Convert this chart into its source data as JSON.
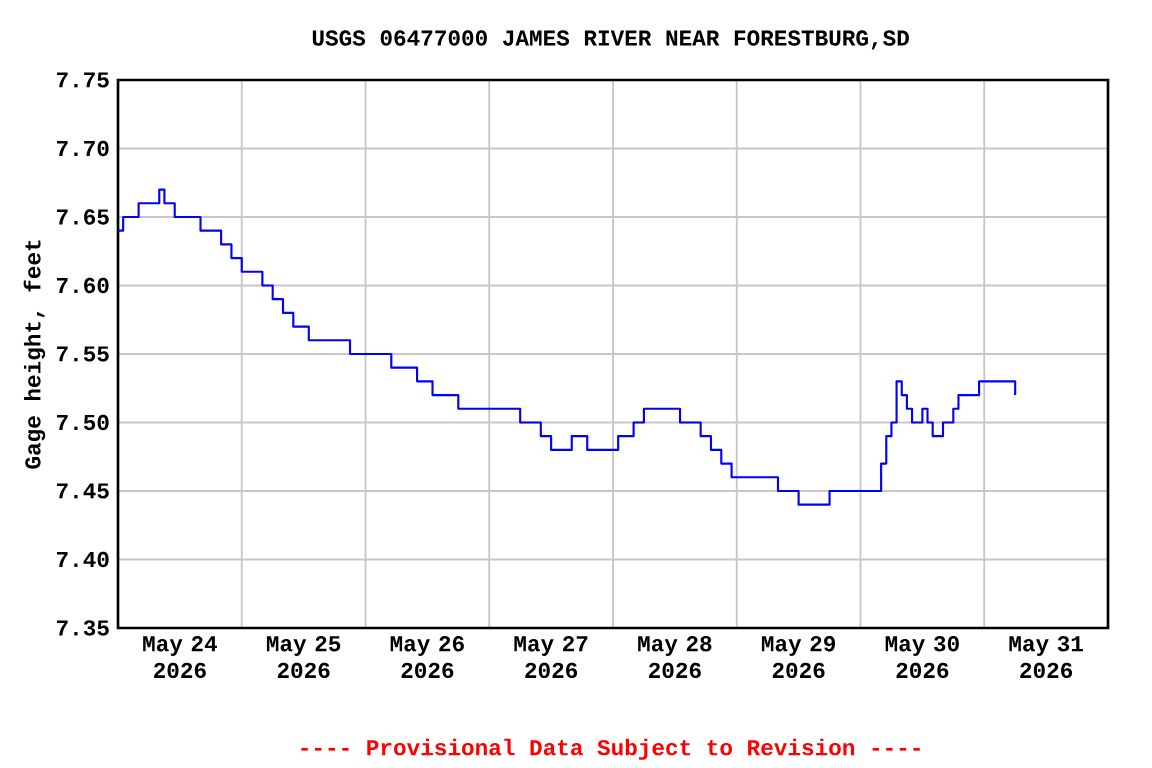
{
  "chart_data": {
    "type": "step",
    "title": "USGS 06477000 JAMES RIVER NEAR FORESTBURG,SD",
    "ylabel": "Gage height, feet",
    "annotations": [
      "---- Provisional Data Subject to Revision ----"
    ],
    "x": [
      "2026-05-24T00:00",
      "2026-05-24T01:00",
      "2026-05-24T04:00",
      "2026-05-24T08:00",
      "2026-05-24T09:00",
      "2026-05-24T11:00",
      "2026-05-24T16:00",
      "2026-05-24T20:00",
      "2026-05-24T22:00",
      "2026-05-25T00:00",
      "2026-05-25T04:00",
      "2026-05-25T06:00",
      "2026-05-25T08:00",
      "2026-05-25T10:00",
      "2026-05-25T13:00",
      "2026-05-25T21:00",
      "2026-05-26T05:00",
      "2026-05-26T10:00",
      "2026-05-26T13:00",
      "2026-05-26T18:00",
      "2026-05-27T05:00",
      "2026-05-27T06:00",
      "2026-05-27T10:00",
      "2026-05-27T12:00",
      "2026-05-27T16:00",
      "2026-05-27T19:00",
      "2026-05-28T01:00",
      "2026-05-28T04:00",
      "2026-05-28T06:00",
      "2026-05-28T13:00",
      "2026-05-28T17:00",
      "2026-05-28T19:00",
      "2026-05-28T21:00",
      "2026-05-28T23:00",
      "2026-05-29T08:00",
      "2026-05-29T12:00",
      "2026-05-29T18:00",
      "2026-05-30T04:00",
      "2026-05-30T05:00",
      "2026-05-30T06:00",
      "2026-05-30T07:00",
      "2026-05-30T08:00",
      "2026-05-30T09:00",
      "2026-05-30T10:00",
      "2026-05-30T12:00",
      "2026-05-30T13:00",
      "2026-05-30T14:00",
      "2026-05-30T16:00",
      "2026-05-30T18:00",
      "2026-05-30T19:00",
      "2026-05-30T23:00",
      "2026-05-31T06:00"
    ],
    "series": [
      {
        "color": "#0000ff",
        "values": [
          7.64,
          7.65,
          7.66,
          7.67,
          7.66,
          7.65,
          7.64,
          7.63,
          7.62,
          7.61,
          7.6,
          7.59,
          7.58,
          7.57,
          7.56,
          7.55,
          7.54,
          7.53,
          7.52,
          7.51,
          7.51,
          7.5,
          7.49,
          7.48,
          7.49,
          7.48,
          7.49,
          7.5,
          7.51,
          7.5,
          7.49,
          7.48,
          7.47,
          7.46,
          7.45,
          7.44,
          7.45,
          7.47,
          7.49,
          7.5,
          7.53,
          7.52,
          7.51,
          7.5,
          7.51,
          7.5,
          7.49,
          7.5,
          7.51,
          7.52,
          7.53,
          7.52
        ]
      }
    ],
    "xlim": [
      "2026-05-24T00:00",
      "2026-06-01T00:00"
    ],
    "xticks": [
      {
        "value": "2026-05-24T00:00",
        "label": null
      },
      {
        "value": "2026-05-24T12:00",
        "label": "May 24 2026"
      },
      {
        "value": "2026-05-25T00:00",
        "label": null
      },
      {
        "value": "2026-05-25T12:00",
        "label": "May 25 2026"
      },
      {
        "value": "2026-05-26T00:00",
        "label": null
      },
      {
        "value": "2026-05-26T12:00",
        "label": "May 26 2026"
      },
      {
        "value": "2026-05-27T00:00",
        "label": null
      },
      {
        "value": "2026-05-27T12:00",
        "label": "May 27 2026"
      },
      {
        "value": "2026-05-28T00:00",
        "label": null
      },
      {
        "value": "2026-05-28T12:00",
        "label": "May 28 2026"
      },
      {
        "value": "2026-05-29T00:00",
        "label": null
      },
      {
        "value": "2026-05-29T12:00",
        "label": "May 29 2026"
      },
      {
        "value": "2026-05-30T00:00",
        "label": null
      },
      {
        "value": "2026-05-30T12:00",
        "label": "May 30 2026"
      },
      {
        "value": "2026-05-31T00:00",
        "label": null
      },
      {
        "value": "2026-05-31T12:00",
        "label": "May 31 2026"
      },
      {
        "value": "2026-06-01T00:00",
        "label": null
      }
    ],
    "ylim": [
      7.35,
      7.75
    ],
    "yticks": [
      7.35,
      {
        "value": 7.4,
        "label": "7.40"
      },
      7.45,
      {
        "value": 7.5,
        "label": "7.50"
      },
      7.55,
      {
        "value": 7.6,
        "label": "7.60"
      },
      7.65,
      {
        "value": 7.7,
        "label": "7.70"
      },
      7.75
    ],
    "grid": true
  }
}
